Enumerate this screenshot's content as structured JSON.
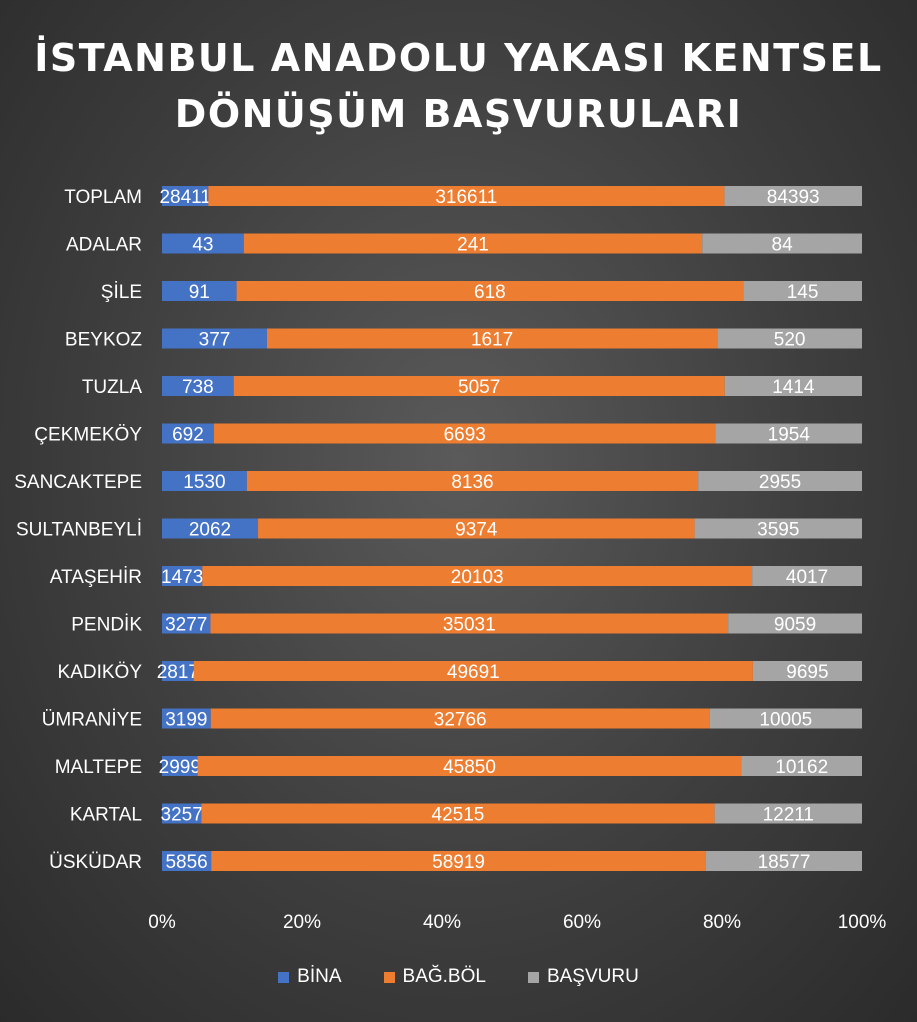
{
  "chart_data": {
    "type": "bar",
    "orientation": "horizontal",
    "stacked": "percent",
    "title_lines": [
      "İSTANBUL ANADOLU YAKASI KENTSEL",
      "DÖNÜŞÜM BAŞVURULARI"
    ],
    "categories": [
      "TOPLAM",
      "ADALAR",
      "ŞİLE",
      "BEYKOZ",
      "TUZLA",
      "ÇEKMEKÖY",
      "SANCAKTEPE",
      "SULTANBEYLİ",
      "ATAŞEHİR",
      "PENDİK",
      "KADIKÖY",
      "ÜMRANİYE",
      "MALTEPE",
      "KARTAL",
      "ÜSKÜDAR"
    ],
    "series": [
      {
        "name": "BİNA",
        "color": "#4472C4",
        "values": [
          28411,
          43,
          91,
          377,
          738,
          692,
          1530,
          2062,
          1473,
          3277,
          2817,
          3199,
          2999,
          3257,
          5856
        ]
      },
      {
        "name": "BAĞ.BÖL",
        "color": "#ED7D31",
        "values": [
          316611,
          241,
          618,
          1617,
          5057,
          6693,
          8136,
          9374,
          20103,
          35031,
          49691,
          32766,
          45850,
          42515,
          58919
        ]
      },
      {
        "name": "BAŞVURU",
        "color": "#A5A5A5",
        "values": [
          84393,
          84,
          145,
          520,
          1414,
          1954,
          2955,
          3595,
          4017,
          9059,
          9695,
          10005,
          10162,
          12211,
          18577
        ]
      }
    ],
    "xaxis_ticks": [
      "0%",
      "20%",
      "40%",
      "60%",
      "80%",
      "100%"
    ],
    "xlim": [
      0,
      100
    ],
    "legend_position": "bottom",
    "grid": false
  }
}
